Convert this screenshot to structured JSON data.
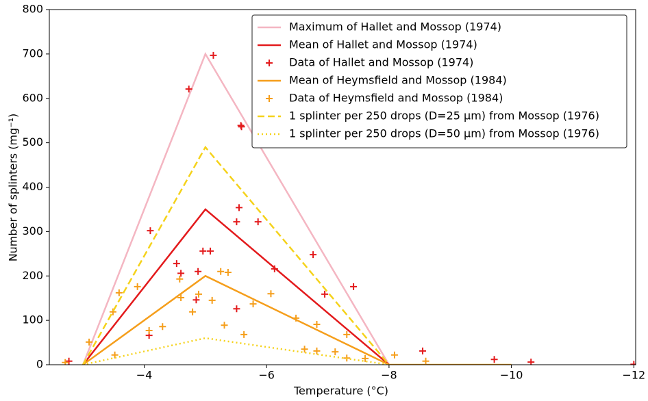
{
  "chart_data": {
    "type": "line",
    "xlabel": "Temperature (°C)",
    "ylabel": "Number of splinters (mg⁻¹)",
    "xlim": [
      -2.45,
      -12.03
    ],
    "ylim": [
      0,
      800
    ],
    "xticks": [
      {
        "value": -4,
        "label": "−4"
      },
      {
        "value": -6,
        "label": "−6"
      },
      {
        "value": -8,
        "label": "−8"
      },
      {
        "value": -10,
        "label": "−10"
      },
      {
        "value": -12,
        "label": "−12"
      }
    ],
    "yticks": [
      0,
      100,
      200,
      300,
      400,
      500,
      600,
      700,
      800
    ],
    "legend": "upper right",
    "series": [
      {
        "name": "Maximum of Hallet and Mossop (1974)",
        "kind": "line",
        "style": "solid",
        "color": "#f4b6c2",
        "x": [
          -3,
          -5,
          -8
        ],
        "values": [
          0,
          700,
          0
        ]
      },
      {
        "name": "Mean of Hallet and Mossop (1974)",
        "kind": "line",
        "style": "solid",
        "color": "#e31a1c",
        "x": [
          -3,
          -5,
          -8
        ],
        "values": [
          0,
          350,
          0
        ]
      },
      {
        "name": "Data of Hallet and Mossop (1974)",
        "kind": "scatter",
        "color": "#e31a1c",
        "x": [
          -2.77,
          -4.73,
          -5.13,
          -5.58,
          -5.59,
          -4.1,
          -4.08,
          -4.53,
          -4.6,
          -4.88,
          -4.85,
          -4.96,
          -5.08,
          -5.51,
          -5.55,
          -5.86,
          -6.13,
          -5.51,
          -6.76,
          -6.95,
          -7.42,
          -8.55,
          -9.72,
          -10.32,
          -12
        ],
        "values": [
          8,
          621,
          697,
          539,
          536,
          302,
          66,
          228,
          206,
          210,
          146,
          256,
          256,
          322,
          354,
          322,
          216,
          126,
          248,
          159,
          176,
          31,
          12,
          6,
          1
        ]
      },
      {
        "name": "Mean of Heymsfield and Mossop (1984)",
        "kind": "line",
        "style": "solid",
        "color": "#f59e1b",
        "x": [
          -3,
          -5,
          -8,
          -10
        ],
        "values": [
          0,
          200,
          0,
          0
        ]
      },
      {
        "name": "Data of Heymsfield and Mossop (1984)",
        "kind": "scatter",
        "color": "#f59e1b",
        "x": [
          -2.71,
          -3.1,
          -3.49,
          -3.59,
          -3.52,
          -3.89,
          -4.08,
          -4.3,
          -4.58,
          -4.6,
          -4.79,
          -4.89,
          -5.11,
          -5.25,
          -5.37,
          -5.31,
          -5.63,
          -5.78,
          -6.07,
          -6.48,
          -6.62,
          -6.82,
          -6.82,
          -7.12,
          -7.31,
          -7.31,
          -7.61,
          -8.09,
          -8.6
        ],
        "values": [
          5,
          51,
          119,
          162,
          22,
          176,
          77,
          86,
          193,
          151,
          119,
          159,
          145,
          210,
          208,
          89,
          68,
          137,
          160,
          105,
          35,
          31,
          91,
          29,
          68,
          15,
          14,
          22,
          8
        ]
      },
      {
        "name": "1 splinter per 250 drops (D=25 µm) from Mossop (1976)",
        "kind": "line",
        "style": "dashed",
        "color": "#f5d21b",
        "x": [
          -3,
          -5,
          -8
        ],
        "values": [
          0,
          490,
          0
        ]
      },
      {
        "name": "1 splinter per 250 drops (D=50 µm) from Mossop (1976)",
        "kind": "line",
        "style": "dotted",
        "color": "#f5d21b",
        "x": [
          -3,
          -5,
          -8
        ],
        "values": [
          0,
          60,
          0
        ]
      }
    ]
  }
}
